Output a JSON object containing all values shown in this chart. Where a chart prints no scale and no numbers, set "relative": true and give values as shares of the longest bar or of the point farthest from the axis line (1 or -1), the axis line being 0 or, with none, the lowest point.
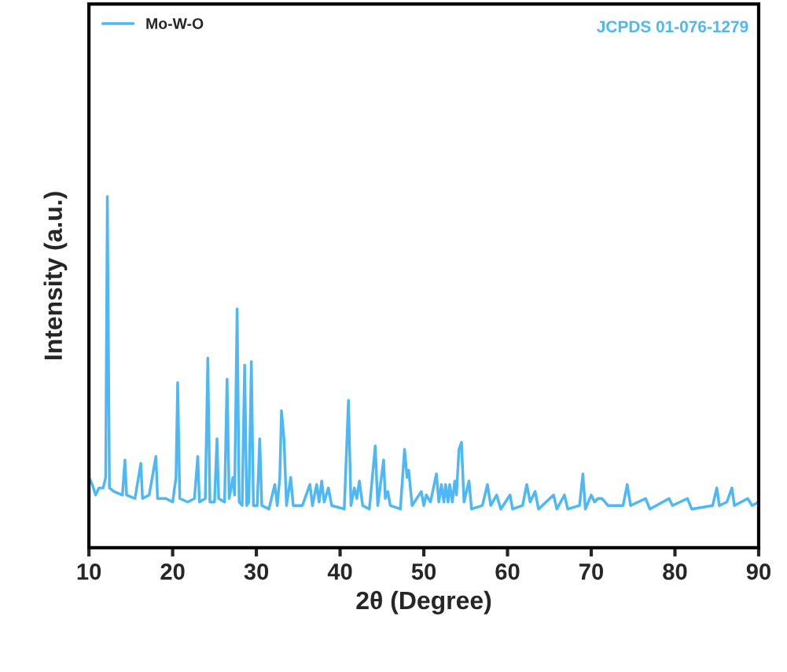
{
  "chart_data": {
    "type": "line",
    "xlabel": "2θ (Degree)",
    "ylabel": "Intensity (a.u.)",
    "relative": true,
    "xlim": [
      10,
      90
    ],
    "xticks": [
      10,
      20,
      30,
      40,
      50,
      60,
      70,
      80,
      90
    ],
    "tick_labels": "x",
    "legend": "top left",
    "grid": false,
    "annotations": [
      "JCPDS 01-076-1279"
    ],
    "series": [
      {
        "name": "Mo-W-O",
        "color": "#4db8f5",
        "x": [
          10.0,
          10.4,
          10.8,
          11.2,
          11.7,
          12.0,
          12.2,
          12.45,
          13.0,
          14.0,
          14.3,
          14.5,
          15.5,
          16.2,
          16.4,
          17.2,
          18.0,
          18.2,
          19.2,
          20.0,
          20.4,
          20.6,
          20.85,
          21.8,
          22.6,
          23.0,
          23.2,
          23.9,
          24.2,
          24.45,
          25.0,
          25.3,
          25.5,
          26.2,
          26.5,
          26.75,
          27.2,
          27.4,
          27.7,
          27.95,
          28.3,
          28.6,
          28.85,
          29.1,
          29.4,
          29.65,
          30.1,
          30.4,
          30.65,
          31.5,
          32.2,
          32.5,
          32.8,
          33.0,
          33.3,
          33.6,
          34.1,
          34.4,
          35.5,
          36.4,
          36.7,
          37.2,
          37.5,
          37.8,
          38.1,
          38.6,
          39.0,
          40.5,
          41.0,
          41.3,
          41.7,
          42.0,
          42.3,
          42.7,
          43.5,
          44.2,
          44.5,
          45.2,
          45.4,
          45.7,
          46.0,
          47.2,
          47.7,
          48.0,
          48.2,
          48.6,
          49.7,
          50.0,
          50.3,
          50.8,
          51.5,
          51.8,
          52.1,
          52.4,
          52.6,
          52.9,
          53.1,
          53.4,
          53.7,
          53.9,
          54.2,
          54.5,
          54.8,
          55.4,
          55.7,
          57.0,
          57.6,
          58.0,
          58.7,
          59.2,
          60.3,
          60.6,
          61.8,
          62.3,
          62.7,
          63.3,
          63.7,
          65.5,
          65.9,
          66.8,
          67.2,
          68.6,
          69.0,
          69.3,
          70.0,
          70.4,
          70.8,
          71.3,
          72.0,
          73.8,
          74.3,
          74.7,
          76.5,
          77.0,
          79.3,
          79.7,
          81.5,
          82.0,
          84.5,
          85.0,
          85.3,
          86.2,
          86.8,
          87.1,
          88.7,
          89.2,
          90.0
        ],
        "values": [
          0.2,
          0.18,
          0.15,
          0.17,
          0.17,
          0.2,
          1.0,
          0.17,
          0.16,
          0.15,
          0.25,
          0.15,
          0.14,
          0.24,
          0.14,
          0.15,
          0.26,
          0.14,
          0.14,
          0.13,
          0.2,
          0.47,
          0.14,
          0.13,
          0.14,
          0.26,
          0.13,
          0.14,
          0.54,
          0.13,
          0.13,
          0.31,
          0.14,
          0.13,
          0.48,
          0.14,
          0.2,
          0.15,
          0.68,
          0.13,
          0.12,
          0.52,
          0.12,
          0.13,
          0.53,
          0.12,
          0.12,
          0.31,
          0.12,
          0.11,
          0.18,
          0.12,
          0.2,
          0.39,
          0.31,
          0.12,
          0.2,
          0.12,
          0.12,
          0.18,
          0.12,
          0.18,
          0.13,
          0.19,
          0.13,
          0.17,
          0.12,
          0.11,
          0.42,
          0.12,
          0.17,
          0.14,
          0.19,
          0.12,
          0.11,
          0.29,
          0.12,
          0.25,
          0.14,
          0.16,
          0.12,
          0.11,
          0.28,
          0.2,
          0.22,
          0.12,
          0.16,
          0.12,
          0.15,
          0.13,
          0.21,
          0.13,
          0.18,
          0.13,
          0.18,
          0.13,
          0.18,
          0.13,
          0.19,
          0.15,
          0.28,
          0.3,
          0.13,
          0.19,
          0.11,
          0.12,
          0.18,
          0.12,
          0.15,
          0.11,
          0.15,
          0.11,
          0.12,
          0.18,
          0.13,
          0.16,
          0.11,
          0.15,
          0.11,
          0.15,
          0.11,
          0.12,
          0.21,
          0.11,
          0.15,
          0.13,
          0.14,
          0.14,
          0.12,
          0.12,
          0.18,
          0.12,
          0.14,
          0.11,
          0.14,
          0.12,
          0.14,
          0.11,
          0.12,
          0.17,
          0.12,
          0.13,
          0.17,
          0.12,
          0.14,
          0.12,
          0.13
        ]
      }
    ]
  }
}
